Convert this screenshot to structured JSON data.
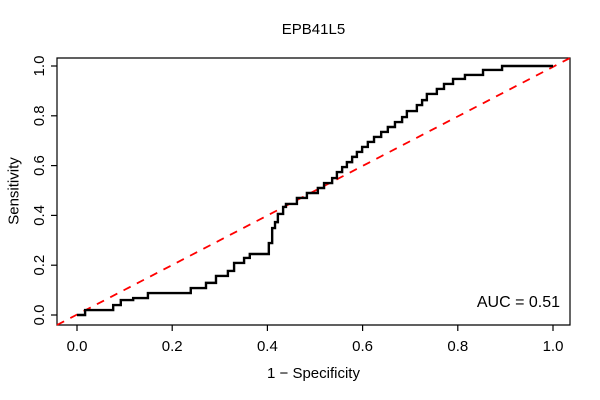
{
  "chart_data": {
    "type": "line",
    "subtype": "roc-step-curve",
    "title": "EPB41L5",
    "xlabel": "1 − Specificity",
    "ylabel": "Sensitivity",
    "xlim": [
      0.0,
      1.0
    ],
    "ylim": [
      0.0,
      1.0
    ],
    "x_ticks": [
      "0.0",
      "0.2",
      "0.4",
      "0.6",
      "0.8",
      "1.0"
    ],
    "y_ticks": [
      "0.0",
      "0.2",
      "0.4",
      "0.6",
      "0.8",
      "1.0"
    ],
    "grid": false,
    "legend": "none",
    "annotation": "AUC = 0.51",
    "auc_value": 0.51,
    "colors": {
      "roc_curve": "#000000",
      "chance_diagonal": "#ff0000",
      "axis": "#000000",
      "background": "#ffffff",
      "text": "#000000"
    },
    "series": [
      {
        "name": "ROC curve (1 − Specificity vs Sensitivity)",
        "style": "solid-step",
        "points": [
          [
            0.0,
            0.0
          ],
          [
            0.017,
            0.02
          ],
          [
            0.076,
            0.04
          ],
          [
            0.092,
            0.06
          ],
          [
            0.118,
            0.068
          ],
          [
            0.149,
            0.088
          ],
          [
            0.239,
            0.108
          ],
          [
            0.271,
            0.129
          ],
          [
            0.292,
            0.157
          ],
          [
            0.317,
            0.177
          ],
          [
            0.33,
            0.209
          ],
          [
            0.351,
            0.229
          ],
          [
            0.363,
            0.245
          ],
          [
            0.403,
            0.289
          ],
          [
            0.41,
            0.349
          ],
          [
            0.416,
            0.373
          ],
          [
            0.422,
            0.406
          ],
          [
            0.433,
            0.434
          ],
          [
            0.439,
            0.446
          ],
          [
            0.462,
            0.47
          ],
          [
            0.483,
            0.49
          ],
          [
            0.506,
            0.51
          ],
          [
            0.519,
            0.53
          ],
          [
            0.536,
            0.55
          ],
          [
            0.546,
            0.574
          ],
          [
            0.557,
            0.594
          ],
          [
            0.567,
            0.614
          ],
          [
            0.578,
            0.635
          ],
          [
            0.588,
            0.655
          ],
          [
            0.599,
            0.675
          ],
          [
            0.611,
            0.695
          ],
          [
            0.624,
            0.715
          ],
          [
            0.639,
            0.735
          ],
          [
            0.653,
            0.755
          ],
          [
            0.668,
            0.775
          ],
          [
            0.683,
            0.795
          ],
          [
            0.693,
            0.819
          ],
          [
            0.714,
            0.843
          ],
          [
            0.725,
            0.863
          ],
          [
            0.735,
            0.888
          ],
          [
            0.756,
            0.908
          ],
          [
            0.771,
            0.928
          ],
          [
            0.79,
            0.948
          ],
          [
            0.815,
            0.964
          ],
          [
            0.853,
            0.984
          ],
          [
            0.893,
            1.0
          ],
          [
            1.0,
            1.0
          ]
        ]
      },
      {
        "name": "Chance diagonal",
        "style": "dashed",
        "points": [
          [
            0.0,
            0.0
          ],
          [
            1.0,
            1.0
          ]
        ]
      }
    ]
  }
}
